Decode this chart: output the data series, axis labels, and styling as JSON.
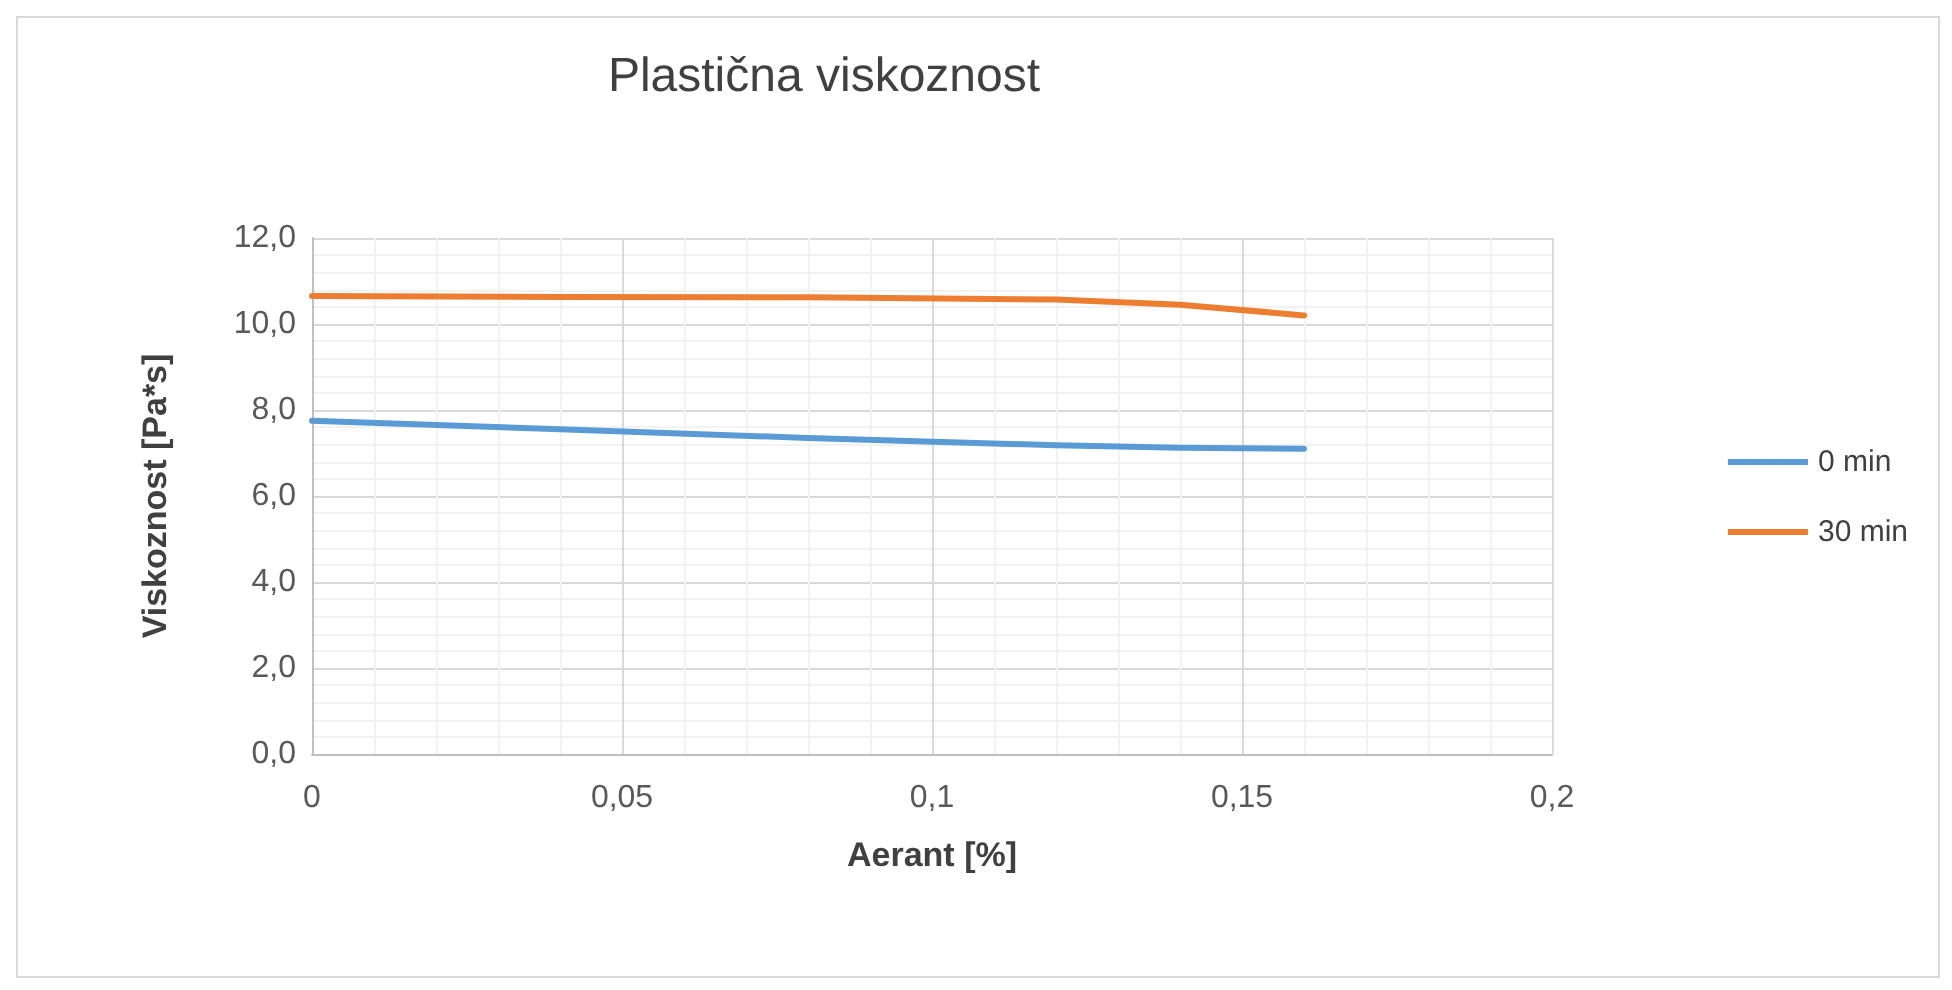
{
  "chart_data": {
    "type": "line",
    "title": "Plastična viskoznost",
    "xlabel": "Aerant [%]",
    "ylabel": "Viskoznost [Pa*s]",
    "xlim": [
      0,
      0.2
    ],
    "xticks": [
      0,
      {
        "value": 0.05,
        "label": "0,05"
      },
      {
        "value": 0.1,
        "label": "0,1"
      },
      {
        "value": 0.15,
        "label": "0,15"
      },
      {
        "value": 0.2,
        "label": "0,2"
      }
    ],
    "ylim": [
      0,
      12
    ],
    "yticks": [
      {
        "value": 0,
        "label": "0,0"
      },
      {
        "value": 2,
        "label": "2,0"
      },
      {
        "value": 4,
        "label": "4,0"
      },
      {
        "value": 6,
        "label": "6,0"
      },
      {
        "value": 8,
        "label": "8,0"
      },
      {
        "value": 10,
        "label": "10,0"
      },
      {
        "value": 12,
        "label": "12,0"
      }
    ],
    "grid": true,
    "legend": "right",
    "marker": "none",
    "line_style": "solid",
    "x": [
      0,
      0.04,
      0.08,
      0.12,
      0.14,
      0.16
    ],
    "series": [
      {
        "name": "0 min",
        "color": "#5b9bd5",
        "values": [
          7.75,
          7.55,
          7.35,
          7.18,
          7.12,
          7.1
        ]
      },
      {
        "name": "30 min",
        "color": "#ed7d31",
        "values": [
          10.65,
          10.63,
          10.62,
          10.57,
          10.45,
          10.2
        ]
      }
    ]
  }
}
